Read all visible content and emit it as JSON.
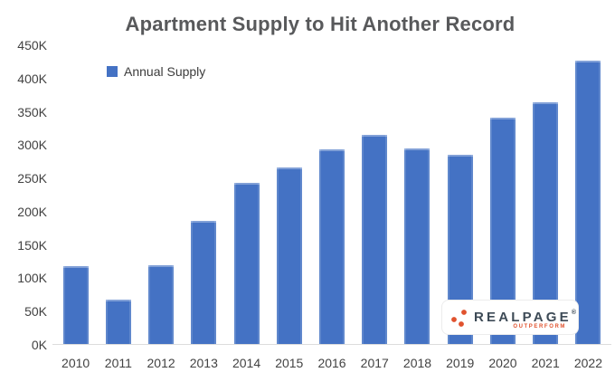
{
  "chart_data": {
    "type": "bar",
    "title": "Apartment Supply to Hit Another Record",
    "legend": {
      "label": "Annual Supply",
      "position": "top-left"
    },
    "categories": [
      "2010",
      "2011",
      "2012",
      "2013",
      "2014",
      "2015",
      "2016",
      "2017",
      "2018",
      "2019",
      "2020",
      "2021",
      "2022"
    ],
    "series": [
      {
        "name": "Annual Supply",
        "values": [
          118000,
          68000,
          120000,
          186000,
          244000,
          266000,
          294000,
          315000,
          295000,
          286000,
          341000,
          364000,
          427000
        ]
      }
    ],
    "xlabel": "",
    "ylabel": "",
    "y_axis": {
      "min": 0,
      "max": 450000,
      "tick_step": 50000,
      "tick_labels": [
        "0K",
        "50K",
        "100K",
        "150K",
        "200K",
        "250K",
        "300K",
        "350K",
        "400K",
        "450K"
      ]
    },
    "grid": false,
    "colors": {
      "bar": "#4472c4",
      "title": "#58595b",
      "axis_labels": "#424242",
      "baseline": "#dcdcdc"
    }
  },
  "logo": {
    "brand": "REALPAGE",
    "trademark": "®",
    "tagline": "OUTPERFORM",
    "mark": "three-dots-icon",
    "colors": {
      "brand": "#3d4a56",
      "accent": "#e0522e"
    }
  }
}
